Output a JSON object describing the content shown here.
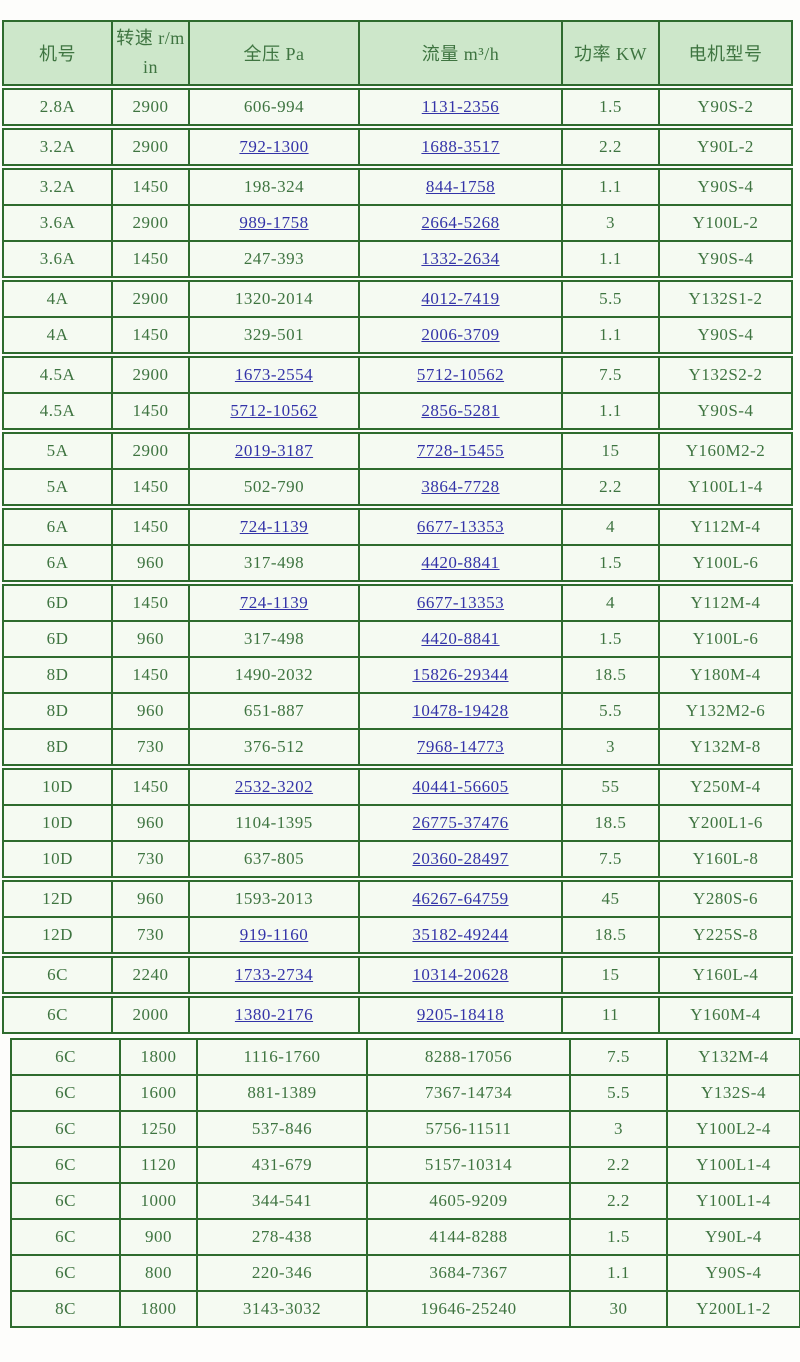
{
  "colors": {
    "border": "#2e6b2e",
    "header_bg": "#cde7ca",
    "row_bg": "#f5faf2",
    "text": "#3e7440",
    "link": "#3333a8"
  },
  "table": {
    "columns": [
      {
        "key": "no",
        "label": "机号"
      },
      {
        "key": "rpm",
        "label": "转速 r/min"
      },
      {
        "key": "pa",
        "label": "全压 Pa"
      },
      {
        "key": "flow",
        "label": "流量 m³/h"
      },
      {
        "key": "kw",
        "label": "功率 KW"
      },
      {
        "key": "motor",
        "label": "电机型号"
      }
    ],
    "shifted_group": 13,
    "rows": [
      {
        "t": 1,
        "no": "2.8A",
        "rpm": "2900",
        "pa": "606-994",
        "pa_link": false,
        "flow": "1131-2356",
        "flow_link": true,
        "kw": "1.5",
        "motor": "Y90S-2"
      },
      {
        "t": 2,
        "no": "3.2A",
        "rpm": "2900",
        "pa": "792-1300",
        "pa_link": true,
        "flow": "1688-3517",
        "flow_link": true,
        "kw": "2.2",
        "motor": "Y90L-2"
      },
      {
        "t": 3,
        "no": "3.2A",
        "rpm": "1450",
        "pa": "198-324",
        "pa_link": false,
        "flow": "844-1758",
        "flow_link": true,
        "kw": "1.1",
        "motor": "Y90S-4"
      },
      {
        "t": 3,
        "no": "3.6A",
        "rpm": "2900",
        "pa": "989-1758",
        "pa_link": true,
        "flow": "2664-5268",
        "flow_link": true,
        "kw": "3",
        "motor": "Y100L-2"
      },
      {
        "t": 3,
        "no": "3.6A",
        "rpm": "1450",
        "pa": "247-393",
        "pa_link": false,
        "flow": "1332-2634",
        "flow_link": true,
        "kw": "1.1",
        "motor": "Y90S-4"
      },
      {
        "t": 4,
        "no": "4A",
        "rpm": "2900",
        "pa": "1320-2014",
        "pa_link": false,
        "flow": "4012-7419",
        "flow_link": true,
        "kw": "5.5",
        "motor": "Y132S1-2"
      },
      {
        "t": 4,
        "no": "4A",
        "rpm": "1450",
        "pa": "329-501",
        "pa_link": false,
        "flow": "2006-3709",
        "flow_link": true,
        "kw": "1.1",
        "motor": "Y90S-4"
      },
      {
        "t": 5,
        "no": "4.5A",
        "rpm": "2900",
        "pa": "1673-2554",
        "pa_link": true,
        "flow": "5712-10562",
        "flow_link": true,
        "kw": "7.5",
        "motor": "Y132S2-2"
      },
      {
        "t": 5,
        "no": "4.5A",
        "rpm": "1450",
        "pa": "5712-10562",
        "pa_link": true,
        "flow": "2856-5281",
        "flow_link": true,
        "kw": "1.1",
        "motor": "Y90S-4"
      },
      {
        "t": 6,
        "no": "5A",
        "rpm": "2900",
        "pa": "2019-3187",
        "pa_link": true,
        "flow": "7728-15455",
        "flow_link": true,
        "kw": "15",
        "motor": "Y160M2-2"
      },
      {
        "t": 6,
        "no": "5A",
        "rpm": "1450",
        "pa": "502-790",
        "pa_link": false,
        "flow": "3864-7728",
        "flow_link": true,
        "kw": "2.2",
        "motor": "Y100L1-4"
      },
      {
        "t": 7,
        "no": "6A",
        "rpm": "1450",
        "pa": "724-1139",
        "pa_link": true,
        "flow": "6677-13353",
        "flow_link": true,
        "kw": "4",
        "motor": "Y112M-4"
      },
      {
        "t": 7,
        "no": "6A",
        "rpm": "960",
        "pa": "317-498",
        "pa_link": false,
        "flow": "4420-8841",
        "flow_link": true,
        "kw": "1.5",
        "motor": "Y100L-6"
      },
      {
        "t": 8,
        "no": "6D",
        "rpm": "1450",
        "pa": "724-1139",
        "pa_link": true,
        "flow": "6677-13353",
        "flow_link": true,
        "kw": "4",
        "motor": "Y112M-4"
      },
      {
        "t": 8,
        "no": "6D",
        "rpm": "960",
        "pa": "317-498",
        "pa_link": false,
        "flow": "4420-8841",
        "flow_link": true,
        "kw": "1.5",
        "motor": "Y100L-6"
      },
      {
        "t": 8,
        "no": "8D",
        "rpm": "1450",
        "pa": "1490-2032",
        "pa_link": false,
        "flow": "15826-29344",
        "flow_link": true,
        "kw": "18.5",
        "motor": "Y180M-4"
      },
      {
        "t": 8,
        "no": "8D",
        "rpm": "960",
        "pa": "651-887",
        "pa_link": false,
        "flow": "10478-19428",
        "flow_link": true,
        "kw": "5.5",
        "motor": "Y132M2-6"
      },
      {
        "t": 8,
        "no": "8D",
        "rpm": "730",
        "pa": "376-512",
        "pa_link": false,
        "flow": "7968-14773",
        "flow_link": true,
        "kw": "3",
        "motor": "Y132M-8"
      },
      {
        "t": 9,
        "no": "10D",
        "rpm": "1450",
        "pa": "2532-3202",
        "pa_link": true,
        "flow": "40441-56605",
        "flow_link": true,
        "kw": "55",
        "motor": "Y250M-4"
      },
      {
        "t": 9,
        "no": "10D",
        "rpm": "960",
        "pa": "1104-1395",
        "pa_link": false,
        "flow": "26775-37476",
        "flow_link": true,
        "kw": "18.5",
        "motor": "Y200L1-6"
      },
      {
        "t": 9,
        "no": "10D",
        "rpm": "730",
        "pa": "637-805",
        "pa_link": false,
        "flow": "20360-28497",
        "flow_link": true,
        "kw": "7.5",
        "motor": "Y160L-8"
      },
      {
        "t": 10,
        "no": "12D",
        "rpm": "960",
        "pa": "1593-2013",
        "pa_link": false,
        "flow": "46267-64759",
        "flow_link": true,
        "kw": "45",
        "motor": "Y280S-6"
      },
      {
        "t": 10,
        "no": "12D",
        "rpm": "730",
        "pa": "919-1160",
        "pa_link": true,
        "flow": "35182-49244",
        "flow_link": true,
        "kw": "18.5",
        "motor": "Y225S-8"
      },
      {
        "t": 11,
        "no": "6C",
        "rpm": "2240",
        "pa": "1733-2734",
        "pa_link": true,
        "flow": "10314-20628",
        "flow_link": true,
        "kw": "15",
        "motor": "Y160L-4"
      },
      {
        "t": 12,
        "no": "6C",
        "rpm": "2000",
        "pa": "1380-2176",
        "pa_link": true,
        "flow": "9205-18418",
        "flow_link": true,
        "kw": "11",
        "motor": "Y160M-4"
      },
      {
        "t": 13,
        "no": "6C",
        "rpm": "1800",
        "pa": "1116-1760",
        "pa_link": false,
        "flow": "8288-17056",
        "flow_link": false,
        "kw": "7.5",
        "motor": "Y132M-4"
      },
      {
        "t": 13,
        "no": "6C",
        "rpm": "1600",
        "pa": "881-1389",
        "pa_link": false,
        "flow": "7367-14734",
        "flow_link": false,
        "kw": "5.5",
        "motor": "Y132S-4"
      },
      {
        "t": 13,
        "no": "6C",
        "rpm": "1250",
        "pa": "537-846",
        "pa_link": false,
        "flow": "5756-11511",
        "flow_link": false,
        "kw": "3",
        "motor": "Y100L2-4"
      },
      {
        "t": 13,
        "no": "6C",
        "rpm": "1120",
        "pa": "431-679",
        "pa_link": false,
        "flow": "5157-10314",
        "flow_link": false,
        "kw": "2.2",
        "motor": "Y100L1-4"
      },
      {
        "t": 13,
        "no": "6C",
        "rpm": "1000",
        "pa": "344-541",
        "pa_link": false,
        "flow": "4605-9209",
        "flow_link": false,
        "kw": "2.2",
        "motor": "Y100L1-4"
      },
      {
        "t": 13,
        "no": "6C",
        "rpm": "900",
        "pa": "278-438",
        "pa_link": false,
        "flow": "4144-8288",
        "flow_link": false,
        "kw": "1.5",
        "motor": "Y90L-4"
      },
      {
        "t": 13,
        "no": "6C",
        "rpm": "800",
        "pa": "220-346",
        "pa_link": false,
        "flow": "3684-7367",
        "flow_link": false,
        "kw": "1.1",
        "motor": "Y90S-4"
      },
      {
        "t": 13,
        "no": "8C",
        "rpm": "1800",
        "pa": "3143-3032",
        "pa_link": false,
        "flow": "19646-25240",
        "flow_link": false,
        "kw": "30",
        "motor": "Y200L1-2"
      }
    ]
  }
}
